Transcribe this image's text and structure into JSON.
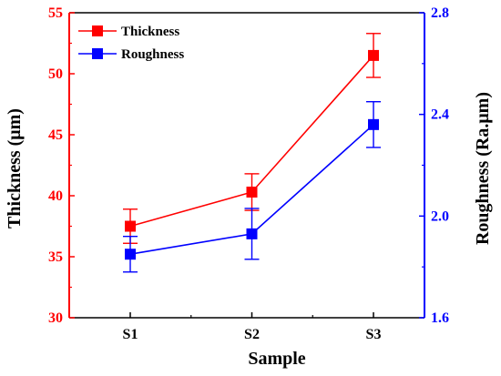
{
  "chart_data": {
    "type": "line",
    "categories": [
      "S1",
      "S2",
      "S3"
    ],
    "xlabel": "Sample",
    "ylabel_left": "Thickness (μm)",
    "ylabel_right": "Roughness (Ra.μm)",
    "ylim_left": [
      30,
      55
    ],
    "yticks_left": [
      "30",
      "35",
      "40",
      "45",
      "50",
      "55"
    ],
    "ylim_right": [
      1.6,
      2.8
    ],
    "yticks_right": [
      "1.6",
      "2.0",
      "2.4",
      "2.8"
    ],
    "grid": false,
    "legend_position": "top-left",
    "series": [
      {
        "name": "Thickness",
        "axis": "left",
        "color": "#ff0000",
        "values": [
          37.5,
          40.3,
          51.5
        ],
        "error": [
          1.4,
          1.5,
          1.8
        ]
      },
      {
        "name": "Roughness",
        "axis": "right",
        "color": "#0000ff",
        "values": [
          1.85,
          1.93,
          2.36
        ],
        "error": [
          0.07,
          0.1,
          0.09
        ]
      }
    ]
  }
}
